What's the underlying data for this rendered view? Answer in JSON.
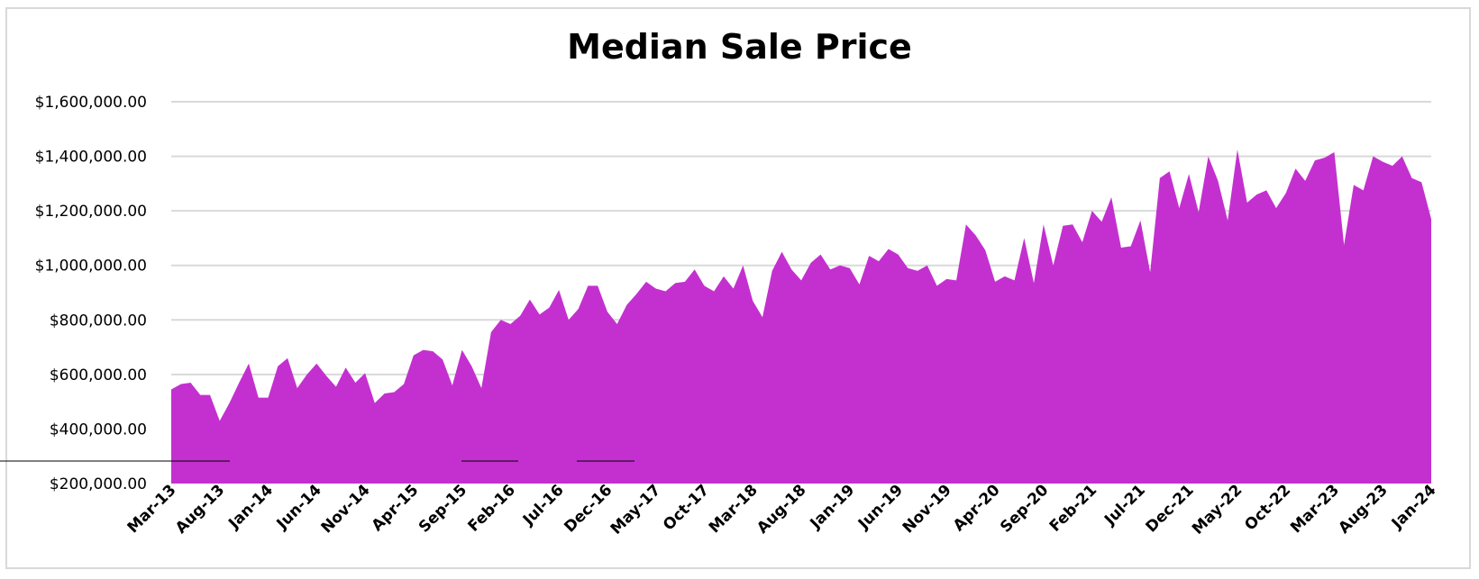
{
  "chart_data": {
    "type": "area",
    "title": "Median Sale Price",
    "xlabel": "",
    "ylabel": "",
    "ylim": [
      200000,
      1600000
    ],
    "grid": true,
    "legend": "none",
    "color": "#c430d0",
    "y_ticks": [
      {
        "value": 200000,
        "label": "$200,000.00"
      },
      {
        "value": 400000,
        "label": "$400,000.00"
      },
      {
        "value": 600000,
        "label": "$600,000.00"
      },
      {
        "value": 800000,
        "label": "$800,000.00"
      },
      {
        "value": 1000000,
        "label": "$1,000,000.00"
      },
      {
        "value": 1200000,
        "label": "$1,200,000.00"
      },
      {
        "value": 1400000,
        "label": "$1,400,000.00"
      },
      {
        "value": 1600000,
        "label": "$1,600,000.00"
      }
    ],
    "x_tick_labels": [
      "Mar-13",
      "Aug-13",
      "Jan-14",
      "Jun-14",
      "Nov-14",
      "Apr-15",
      "Sep-15",
      "Feb-16",
      "Jul-16",
      "Dec-16",
      "May-17",
      "Oct-17",
      "Mar-18",
      "Aug-18",
      "Jan-19",
      "Jun-19",
      "Nov-19",
      "Apr-20",
      "Sep-20",
      "Feb-21",
      "Jul-21",
      "Dec-21",
      "May-22",
      "Oct-22",
      "Mar-23",
      "Aug-23",
      "Jan-24"
    ],
    "x": [
      "Mar-13",
      "Apr-13",
      "May-13",
      "Jun-13",
      "Jul-13",
      "Aug-13",
      "Sep-13",
      "Oct-13",
      "Nov-13",
      "Dec-13",
      "Jan-14",
      "Feb-14",
      "Mar-14",
      "Apr-14",
      "May-14",
      "Jun-14",
      "Jul-14",
      "Aug-14",
      "Sep-14",
      "Oct-14",
      "Nov-14",
      "Dec-14",
      "Jan-15",
      "Feb-15",
      "Mar-15",
      "Apr-15",
      "May-15",
      "Jun-15",
      "Jul-15",
      "Aug-15",
      "Sep-15",
      "Oct-15",
      "Nov-15",
      "Dec-15",
      "Jan-16",
      "Feb-16",
      "Mar-16",
      "Apr-16",
      "May-16",
      "Jun-16",
      "Jul-16",
      "Aug-16",
      "Sep-16",
      "Oct-16",
      "Nov-16",
      "Dec-16",
      "Jan-17",
      "Feb-17",
      "Mar-17",
      "Apr-17",
      "May-17",
      "Jun-17",
      "Jul-17",
      "Aug-17",
      "Sep-17",
      "Oct-17",
      "Nov-17",
      "Dec-17",
      "Jan-18",
      "Feb-18",
      "Mar-18",
      "Apr-18",
      "May-18",
      "Jun-18",
      "Jul-18",
      "Aug-18",
      "Sep-18",
      "Oct-18",
      "Nov-18",
      "Dec-18",
      "Jan-19",
      "Feb-19",
      "Mar-19",
      "Apr-19",
      "May-19",
      "Jun-19",
      "Jul-19",
      "Aug-19",
      "Sep-19",
      "Oct-19",
      "Nov-19",
      "Dec-19",
      "Jan-20",
      "Feb-20",
      "Mar-20",
      "Apr-20",
      "May-20",
      "Jun-20",
      "Jul-20",
      "Aug-20",
      "Sep-20",
      "Oct-20",
      "Nov-20",
      "Dec-20",
      "Jan-21",
      "Feb-21",
      "Mar-21",
      "Apr-21",
      "May-21",
      "Jun-21",
      "Jul-21",
      "Aug-21",
      "Sep-21",
      "Oct-21",
      "Nov-21",
      "Dec-21",
      "Jan-22",
      "Feb-22",
      "Mar-22",
      "Apr-22",
      "May-22",
      "Jun-22",
      "Jul-22",
      "Aug-22",
      "Sep-22",
      "Oct-22",
      "Nov-22",
      "Dec-22",
      "Jan-23",
      "Feb-23",
      "Mar-23",
      "Apr-23",
      "May-23",
      "Jun-23",
      "Jul-23",
      "Aug-23",
      "Sep-23",
      "Oct-23",
      "Nov-23",
      "Dec-23",
      "Jan-24"
    ],
    "values": [
      545000,
      565000,
      570000,
      525000,
      525000,
      430000,
      495000,
      570000,
      640000,
      515000,
      515000,
      630000,
      660000,
      550000,
      600000,
      640000,
      595000,
      555000,
      625000,
      570000,
      605000,
      495000,
      530000,
      535000,
      565000,
      670000,
      690000,
      685000,
      655000,
      560000,
      690000,
      630000,
      550000,
      755000,
      800000,
      785000,
      815000,
      875000,
      820000,
      845000,
      910000,
      800000,
      840000,
      925000,
      925000,
      830000,
      785000,
      855000,
      895000,
      940000,
      915000,
      905000,
      935000,
      940000,
      985000,
      925000,
      905000,
      960000,
      915000,
      1000000,
      870000,
      810000,
      980000,
      1050000,
      985000,
      945000,
      1010000,
      1040000,
      985000,
      1000000,
      990000,
      930000,
      1035000,
      1015000,
      1060000,
      1040000,
      990000,
      980000,
      1000000,
      925000,
      950000,
      945000,
      1150000,
      1110000,
      1055000,
      940000,
      960000,
      945000,
      1100000,
      935000,
      1150000,
      1000000,
      1145000,
      1150000,
      1085000,
      1200000,
      1160000,
      1250000,
      1065000,
      1070000,
      1165000,
      975000,
      1320000,
      1345000,
      1210000,
      1335000,
      1195000,
      1400000,
      1310000,
      1165000,
      1425000,
      1230000,
      1260000,
      1275000,
      1210000,
      1265000,
      1355000,
      1310000,
      1385000,
      1395000,
      1415000,
      1075000,
      1295000,
      1275000,
      1400000,
      1380000,
      1365000,
      1400000,
      1320000,
      1305000,
      1170000
    ]
  }
}
